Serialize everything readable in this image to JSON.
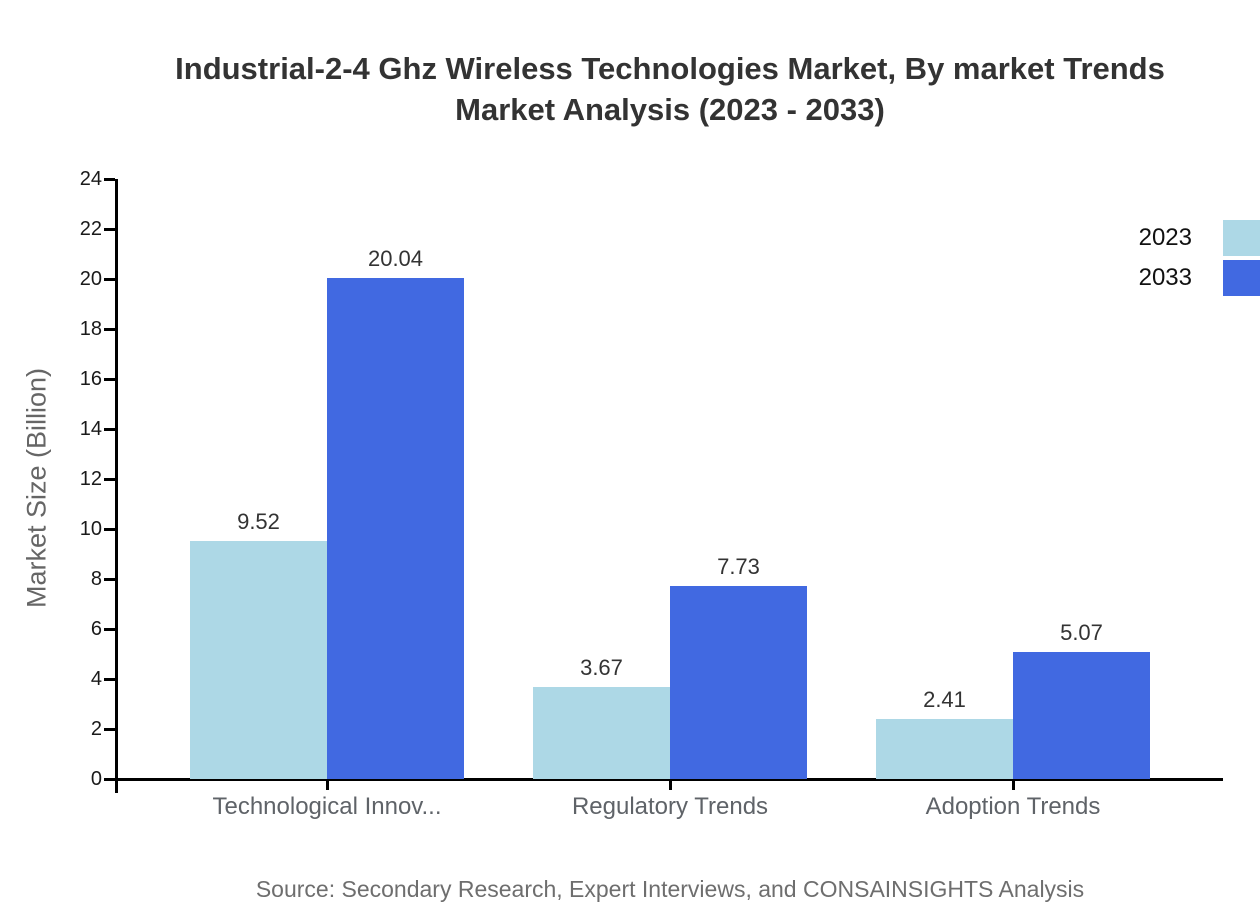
{
  "title": {
    "line1": "Industrial-2-4 Ghz Wireless Technologies Market, By market Trends",
    "line2": "Market Analysis (2023 - 2033)"
  },
  "source": "Source: Secondary Research, Expert Interviews, and CONSAINSIGHTS Analysis",
  "chart_data": {
    "type": "bar",
    "categories": [
      "Technological Innov...",
      "Regulatory Trends",
      "Adoption Trends"
    ],
    "series": [
      {
        "name": "2023",
        "color": "#ADD8E6",
        "values": [
          9.52,
          3.67,
          2.41
        ]
      },
      {
        "name": "2033",
        "color": "#4169E1",
        "values": [
          20.04,
          7.73,
          5.07
        ]
      }
    ],
    "title": "Industrial-2-4 Ghz Wireless Technologies Market, By market Trends Market Analysis (2023 - 2033)",
    "xlabel": "",
    "ylabel": "Market Size (Billion)",
    "ylim": [
      0,
      24
    ],
    "ytick_step": 2,
    "grid": false,
    "value_labels": true,
    "value_label_format": "2-decimals",
    "legend_position": "upper-right-edge-cropped"
  }
}
